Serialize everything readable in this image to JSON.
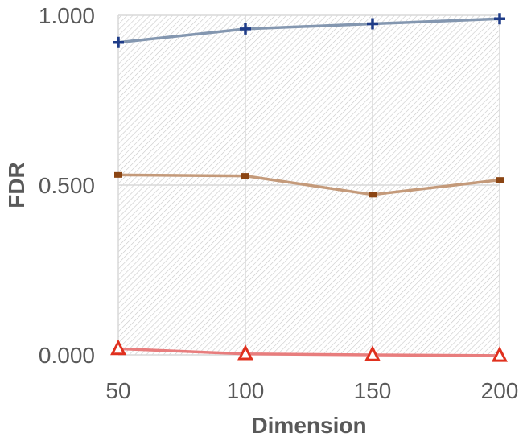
{
  "chart_data": {
    "type": "line",
    "title": "",
    "xlabel": "Dimension",
    "ylabel": "FDR",
    "x": [
      50,
      100,
      150,
      200
    ],
    "x_tick_labels": [
      "50",
      "100",
      "150",
      "200"
    ],
    "y_tick_labels": [
      "0.000",
      "0.500",
      "1.000"
    ],
    "y_ticks": [
      0,
      0.5,
      1
    ],
    "ylim": [
      0,
      1
    ],
    "grid": true,
    "legend": "none",
    "series": [
      {
        "values": [
          0.92,
          0.96,
          0.975,
          0.99
        ],
        "color": "#8497b0",
        "marker": "plus",
        "marker_color": "#1f3c88"
      },
      {
        "values": [
          0.53,
          0.527,
          0.472,
          0.515
        ],
        "color": "#c49a7a",
        "marker": "dash",
        "marker_color": "#8b4513"
      },
      {
        "values": [
          0.018,
          0.003,
          0.0,
          -0.002
        ],
        "color": "#e87d7d",
        "marker": "triangle",
        "marker_color": "#e0301e"
      }
    ]
  }
}
